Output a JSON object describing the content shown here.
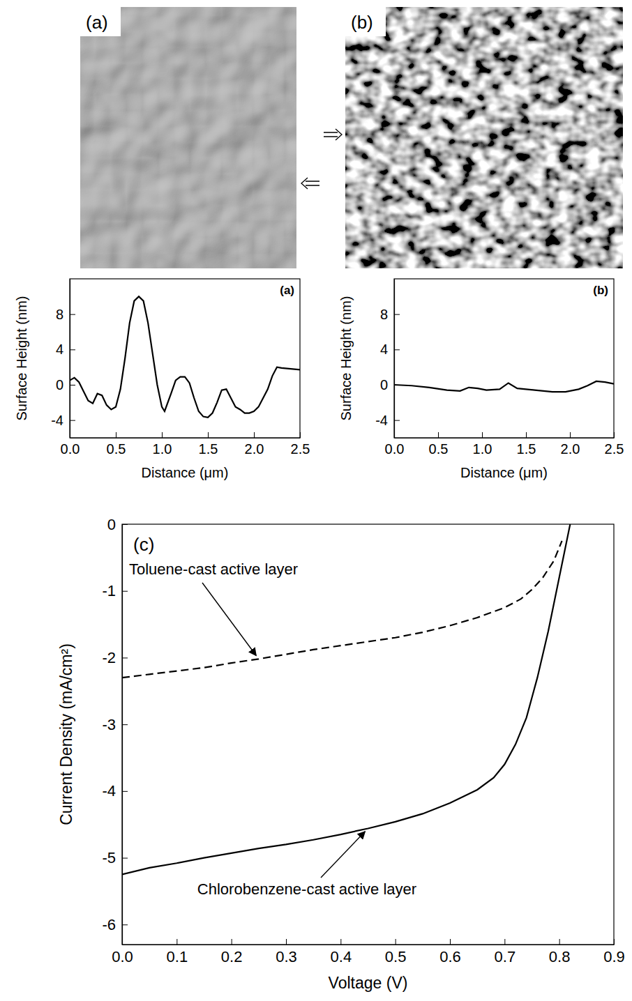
{
  "images": [
    {
      "label": "(a)"
    },
    {
      "label": "(b)"
    }
  ],
  "chart_data": [
    {
      "type": "line",
      "annotation": "(a)",
      "xlabel": "Distance (μm)",
      "ylabel": "Surface Height (nm)",
      "xlim": [
        0,
        2.5
      ],
      "ylim": [
        -6,
        12
      ],
      "xticks": [
        {
          "value": 0,
          "label": "0.0"
        },
        {
          "value": 0.5,
          "label": "0.5"
        },
        {
          "value": 1,
          "label": "1.0"
        },
        {
          "value": 1.5,
          "label": "1.5"
        },
        {
          "value": 2,
          "label": "2.0"
        },
        {
          "value": 2.5,
          "label": "2.5"
        }
      ],
      "yticks": [
        -4,
        0,
        4,
        8
      ],
      "series": [
        {
          "color": "#000000",
          "line_style": "solid",
          "x": [
            0,
            0.05,
            0.1,
            0.2,
            0.25,
            0.3,
            0.35,
            0.4,
            0.45,
            0.5,
            0.55,
            0.6,
            0.65,
            0.7,
            0.75,
            0.8,
            0.85,
            0.9,
            0.95,
            1.0,
            1.03,
            1.1,
            1.15,
            1.2,
            1.25,
            1.3,
            1.35,
            1.4,
            1.45,
            1.5,
            1.55,
            1.6,
            1.65,
            1.7,
            1.75,
            1.8,
            1.85,
            1.9,
            1.95,
            2.0,
            2.05,
            2.1,
            2.15,
            2.2,
            2.25,
            2.3,
            2.4,
            2.5
          ],
          "values": [
            0.5,
            0.8,
            0.3,
            -1.8,
            -2.1,
            -1.0,
            -1.2,
            -2.3,
            -2.8,
            -2.5,
            -0.5,
            3,
            7,
            9.5,
            10,
            9.5,
            7,
            3.5,
            0,
            -2.5,
            -3,
            -1,
            0.5,
            0.9,
            0.9,
            0.2,
            -1.5,
            -3,
            -3.6,
            -3.7,
            -3.2,
            -2,
            -0.6,
            -0.5,
            -1.5,
            -2.5,
            -2.8,
            -3.2,
            -3.2,
            -3.0,
            -2.5,
            -1.5,
            -0.5,
            1.0,
            2.0,
            1.9,
            1.8,
            1.7
          ]
        }
      ]
    },
    {
      "type": "line",
      "annotation": "(b)",
      "xlabel": "Distance (μm)",
      "ylabel": "Surface Height (nm)",
      "xlim": [
        0,
        2.5
      ],
      "ylim": [
        -6,
        12
      ],
      "xticks": [
        {
          "value": 0,
          "label": "0.0"
        },
        {
          "value": 0.5,
          "label": "0.5"
        },
        {
          "value": 1,
          "label": "1.0"
        },
        {
          "value": 1.5,
          "label": "1.5"
        },
        {
          "value": 2,
          "label": "2.0"
        },
        {
          "value": 2.5,
          "label": "2.5"
        }
      ],
      "yticks": [
        -4,
        0,
        4,
        8
      ],
      "series": [
        {
          "color": "#000000",
          "line_style": "solid",
          "x": [
            0,
            0.2,
            0.4,
            0.6,
            0.75,
            0.85,
            0.95,
            1.05,
            1.2,
            1.3,
            1.4,
            1.6,
            1.8,
            1.95,
            2.1,
            2.2,
            2.3,
            2.4,
            2.5
          ],
          "values": [
            0,
            -0.1,
            -0.3,
            -0.6,
            -0.7,
            -0.3,
            -0.4,
            -0.6,
            -0.5,
            0.2,
            -0.4,
            -0.6,
            -0.8,
            -0.8,
            -0.5,
            -0.1,
            0.4,
            0.3,
            0.1
          ]
        }
      ]
    },
    {
      "type": "line",
      "annotation": "(c)",
      "xlabel": "Voltage (V)",
      "ylabel": "Current Density (mA/cm²)",
      "xlim": [
        0,
        0.9
      ],
      "ylim": [
        -6.3,
        0
      ],
      "xticks": [
        {
          "value": 0,
          "label": "0.0"
        },
        {
          "value": 0.1,
          "label": "0.1"
        },
        {
          "value": 0.2,
          "label": "0.2"
        },
        {
          "value": 0.3,
          "label": "0.3"
        },
        {
          "value": 0.4,
          "label": "0.4"
        },
        {
          "value": 0.5,
          "label": "0.5"
        },
        {
          "value": 0.6,
          "label": "0.6"
        },
        {
          "value": 0.7,
          "label": "0.7"
        },
        {
          "value": 0.8,
          "label": "0.8"
        },
        {
          "value": 0.9,
          "label": "0.9"
        }
      ],
      "yticks": [
        0,
        -1,
        -2,
        -3,
        -4,
        -5,
        -6
      ],
      "series": [
        {
          "name": "Toluene-cast active layer",
          "color": "#000000",
          "line_style": "dashed",
          "x": [
            0,
            0.05,
            0.1,
            0.15,
            0.2,
            0.25,
            0.3,
            0.35,
            0.4,
            0.45,
            0.5,
            0.55,
            0.6,
            0.65,
            0.7,
            0.73,
            0.75,
            0.77,
            0.79,
            0.8,
            0.805
          ],
          "values": [
            -2.3,
            -2.25,
            -2.2,
            -2.15,
            -2.08,
            -2.02,
            -1.95,
            -1.88,
            -1.82,
            -1.76,
            -1.7,
            -1.62,
            -1.52,
            -1.4,
            -1.25,
            -1.12,
            -0.98,
            -0.8,
            -0.55,
            -0.35,
            -0.25
          ]
        },
        {
          "name": "Chlorobenzene-cast active layer",
          "color": "#000000",
          "line_style": "solid",
          "x": [
            0,
            0.05,
            0.1,
            0.15,
            0.2,
            0.25,
            0.3,
            0.35,
            0.4,
            0.45,
            0.5,
            0.55,
            0.6,
            0.65,
            0.68,
            0.7,
            0.72,
            0.74,
            0.76,
            0.78,
            0.8,
            0.81,
            0.82
          ],
          "values": [
            -5.25,
            -5.15,
            -5.08,
            -5.0,
            -4.93,
            -4.86,
            -4.8,
            -4.73,
            -4.65,
            -4.56,
            -4.46,
            -4.34,
            -4.18,
            -3.98,
            -3.8,
            -3.6,
            -3.3,
            -2.9,
            -2.3,
            -1.6,
            -0.8,
            -0.4,
            0
          ]
        }
      ]
    }
  ]
}
